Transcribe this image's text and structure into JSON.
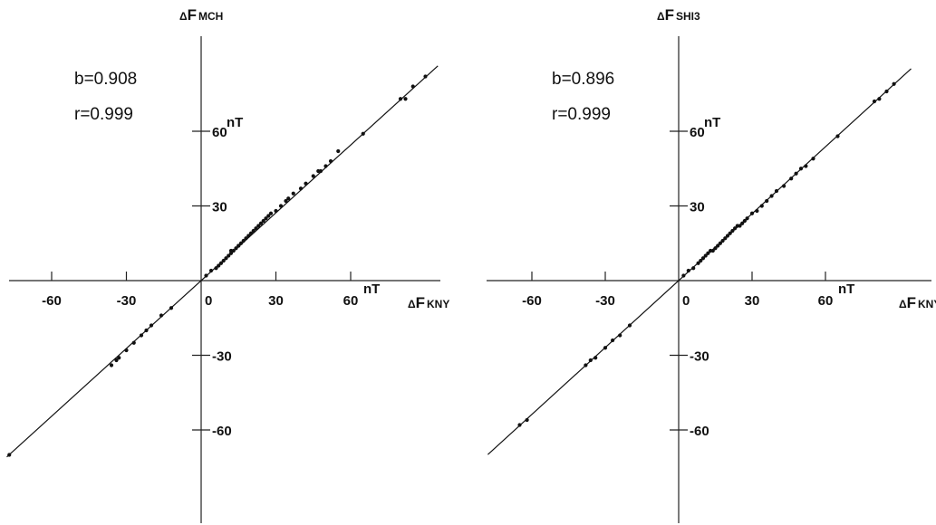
{
  "chart_data": [
    {
      "type": "scatter",
      "title": "",
      "x_axis_label": {
        "prefix": "Δ",
        "main": "F",
        "sub": "KNY"
      },
      "y_axis_label": {
        "prefix": "Δ",
        "main": "F",
        "sub": "MCH"
      },
      "unit": "nT",
      "x_ticks": [
        -60,
        -30,
        0,
        30,
        60
      ],
      "y_ticks": [
        -60,
        -30,
        30,
        60
      ],
      "xlim": [
        -80,
        95
      ],
      "ylim": [
        -120,
        100
      ],
      "slope_text": "b=0.908",
      "corr_text": "r=0.999",
      "fit_line": {
        "slope": 0.908,
        "intercept": 0
      },
      "x": [
        -77,
        -36,
        -34,
        -33,
        -30,
        -27,
        -24,
        -22,
        -20,
        -16,
        -12,
        2,
        4,
        6,
        7,
        8,
        9,
        10,
        11,
        12,
        12,
        13,
        14,
        15,
        15,
        16,
        17,
        18,
        19,
        20,
        21,
        22,
        23,
        24,
        25,
        26,
        27,
        28,
        30,
        32,
        34,
        35,
        37,
        40,
        42,
        45,
        47,
        48,
        50,
        52,
        55,
        65,
        80,
        82,
        85,
        90
      ],
      "y": [
        -70,
        -34,
        -32,
        -31,
        -28,
        -25,
        -22,
        -20,
        -18,
        -14,
        -11,
        2,
        4,
        5,
        6,
        7,
        8,
        9,
        10,
        11,
        12,
        12,
        13,
        14,
        14,
        15,
        16,
        17,
        18,
        19,
        20,
        21,
        22,
        23,
        24,
        25,
        26,
        27,
        28,
        30,
        32,
        33,
        35,
        37,
        39,
        42,
        44,
        44,
        46,
        48,
        52,
        59,
        73,
        73,
        78,
        82
      ]
    },
    {
      "type": "scatter",
      "title": "",
      "x_axis_label": {
        "prefix": "Δ",
        "main": "F",
        "sub": "KNY"
      },
      "y_axis_label": {
        "prefix": "Δ",
        "main": "F",
        "sub": "SHI3"
      },
      "unit": "nT",
      "x_ticks": [
        -60,
        -30,
        0,
        30,
        60
      ],
      "y_ticks": [
        -60,
        -30,
        30,
        60
      ],
      "xlim": [
        -80,
        95
      ],
      "ylim": [
        -120,
        100
      ],
      "slope_text": "b=0.896",
      "corr_text": "r=0.999",
      "fit_line": {
        "slope": 0.896,
        "intercept": 0
      },
      "x": [
        -65,
        -62,
        -38,
        -36,
        -34,
        -30,
        -27,
        -24,
        -20,
        2,
        4,
        6,
        8,
        9,
        10,
        11,
        12,
        13,
        14,
        15,
        16,
        17,
        18,
        19,
        20,
        21,
        22,
        23,
        24,
        25,
        26,
        27,
        28,
        30,
        32,
        34,
        36,
        38,
        40,
        43,
        46,
        48,
        50,
        52,
        55,
        65,
        80,
        82,
        85,
        88
      ],
      "y": [
        -58,
        -56,
        -34,
        -32,
        -31,
        -27,
        -24,
        -22,
        -18,
        2,
        4,
        5,
        7,
        8,
        9,
        10,
        11,
        12,
        12,
        13,
        14,
        15,
        16,
        17,
        18,
        19,
        20,
        21,
        22,
        22,
        23,
        24,
        25,
        27,
        28,
        30,
        32,
        34,
        36,
        38,
        41,
        43,
        45,
        46,
        49,
        58,
        72,
        73,
        76,
        79
      ]
    }
  ]
}
